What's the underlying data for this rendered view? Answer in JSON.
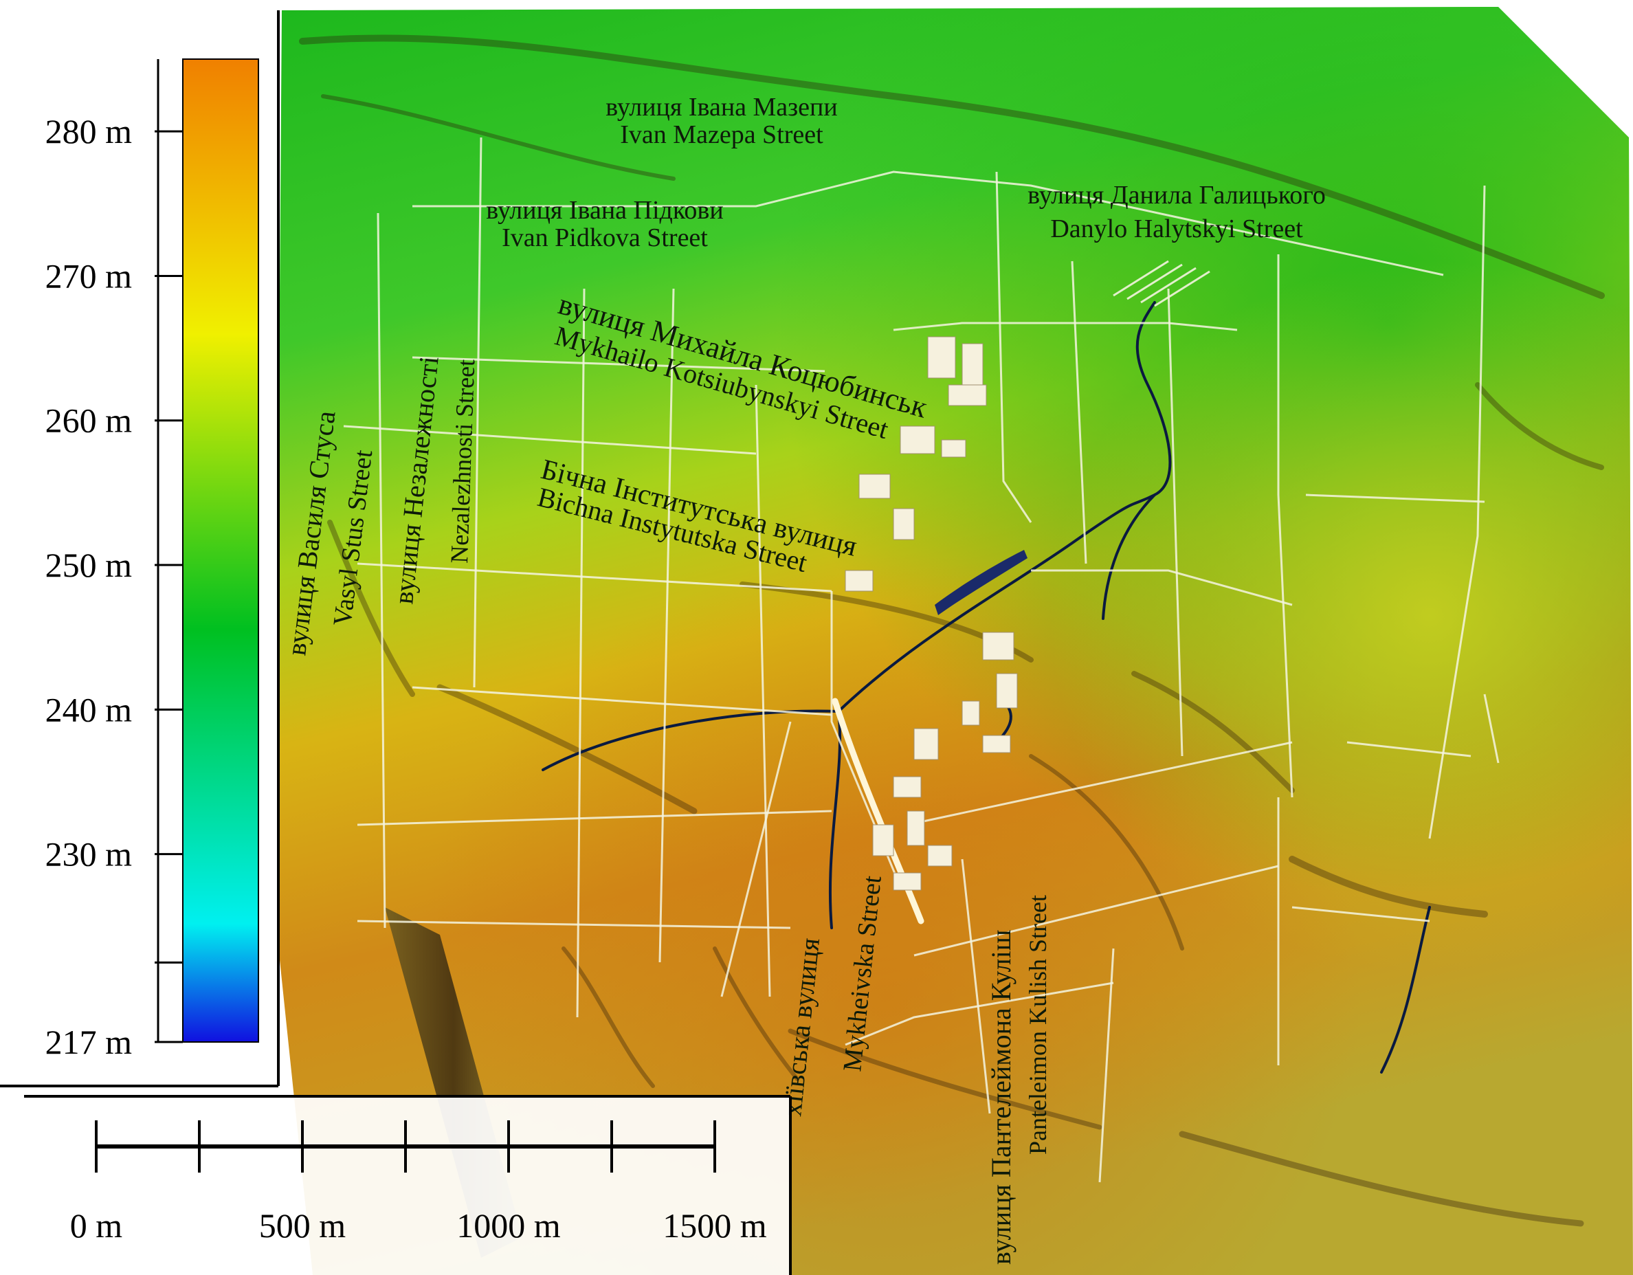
{
  "legend": {
    "title": "",
    "min": 217,
    "max": 285,
    "unit": "m",
    "colors": [
      "#1010e0",
      "#00f0f0",
      "#00c020",
      "#f0f000",
      "#f08000"
    ],
    "ticks": [
      {
        "value": 280,
        "label": "280 m"
      },
      {
        "value": 270,
        "label": "270 m"
      },
      {
        "value": 260,
        "label": "260 m"
      },
      {
        "value": 250,
        "label": "250 m"
      },
      {
        "value": 240,
        "label": "240 m"
      },
      {
        "value": 230,
        "label": "230 m"
      },
      {
        "value": 217,
        "label": "217 m"
      }
    ]
  },
  "scale_bar": {
    "labels": [
      "0 m",
      "500 m",
      "1000 m",
      "1500 m"
    ],
    "max_m": 1500,
    "divisions": 6
  },
  "streets": [
    {
      "id": "mazepy",
      "ukr": "вулиця Івана Мазепи",
      "eng": "Ivan Mazepa Street"
    },
    {
      "id": "pidkovy",
      "ukr": "вулиця Івана Підкови",
      "eng": "Ivan Pidkova Street"
    },
    {
      "id": "halytskoho",
      "ukr": "вулиця Данила Галицького",
      "eng": "Danylo Halytskyi Street"
    },
    {
      "id": "kotsiubynskoho",
      "ukr": "вулиця Михайла Коцюбинськ",
      "eng": "Mykhailo Kotsiubynskyi Street"
    },
    {
      "id": "instytutska",
      "ukr": "Бічна Інститутська вулиця",
      "eng": "Bichna Instytutska Street"
    },
    {
      "id": "stusa",
      "ukr": "вулиця Василя Стуса",
      "eng": "Vasyl Stus Street"
    },
    {
      "id": "nezalezhnosti",
      "ukr": "вулиця Незалежності",
      "eng": "Nezalezhnosti Street"
    },
    {
      "id": "mukheivska",
      "ukr": "хіївська вулиця",
      "eng": "Mykheivska Street"
    },
    {
      "id": "kulisha",
      "ukr": "вулиця Пантелеймона Куліш",
      "eng": "Panteleimon Kulish Street"
    }
  ]
}
